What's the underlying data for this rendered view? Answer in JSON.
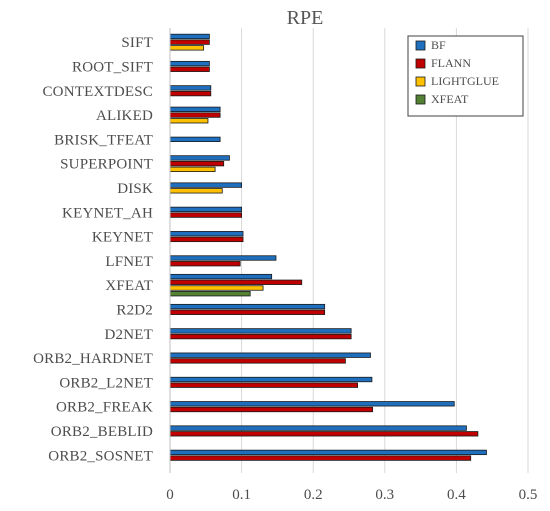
{
  "chart_data": {
    "type": "bar",
    "orientation": "horizontal",
    "title": "RPE",
    "xlabel": "",
    "ylabel": "",
    "xlim": [
      0,
      0.5
    ],
    "xticks": [
      "0",
      "0.1",
      "0.2",
      "0.3",
      "0.4",
      "0.5"
    ],
    "grid": "vertical",
    "legend_position": "top-right",
    "categories": [
      "SIFT",
      "ROOT_SIFT",
      "CONTEXTDESC",
      "ALIKED",
      "BRISK_TFEAT",
      "SUPERPOINT",
      "DISK",
      "KEYNET_AH",
      "KEYNET",
      "LFNET",
      "XFEAT",
      "R2D2",
      "D2NET",
      "ORB2_HARDNET",
      "ORB2_L2NET",
      "ORB2_FREAK",
      "ORB2_BEBLID",
      "ORB2_SOSNET"
    ],
    "series": [
      {
        "name": "BF",
        "color": "#1f6fbf",
        "values": [
          0.055,
          0.055,
          0.057,
          0.07,
          0.07,
          0.083,
          0.1,
          0.1,
          0.102,
          0.148,
          0.142,
          0.216,
          0.253,
          0.28,
          0.282,
          0.397,
          0.414,
          0.442
        ]
      },
      {
        "name": "FLANN",
        "color": "#c00000",
        "values": [
          0.055,
          0.055,
          0.057,
          0.07,
          null,
          0.075,
          null,
          0.1,
          0.102,
          0.098,
          0.184,
          0.216,
          0.253,
          0.245,
          0.262,
          0.283,
          0.43,
          0.42
        ]
      },
      {
        "name": "LIGHTGLUE",
        "color": "#ffc000",
        "values": [
          0.047,
          null,
          null,
          0.053,
          null,
          0.063,
          0.073,
          null,
          null,
          null,
          0.13,
          null,
          null,
          null,
          null,
          null,
          null,
          null
        ]
      },
      {
        "name": "XFEAT",
        "color": "#548235",
        "values": [
          null,
          null,
          null,
          null,
          null,
          null,
          null,
          null,
          null,
          null,
          0.112,
          null,
          null,
          null,
          null,
          null,
          null,
          null
        ]
      }
    ]
  }
}
